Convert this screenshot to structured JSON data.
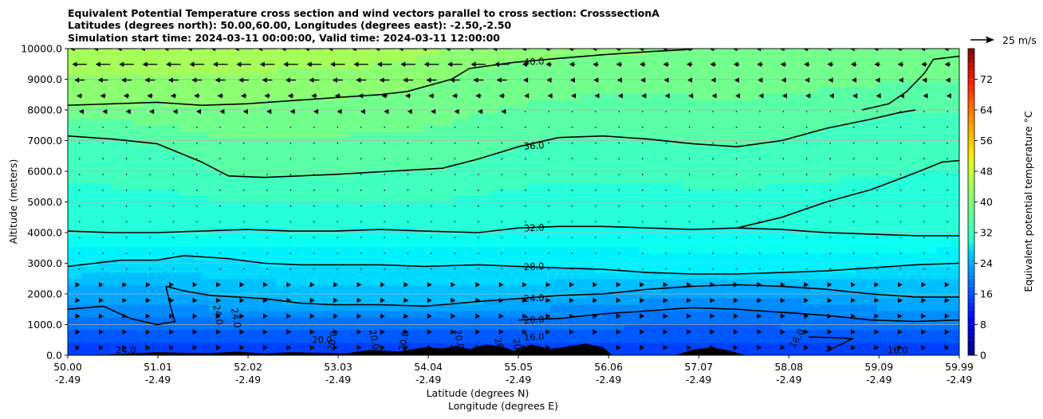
{
  "chart_data": {
    "type": "heatmap",
    "title_lines": [
      "Equivalent Potential Temperature cross section and wind vectors parallel to cross section: CrosssectionA",
      "Latitudes (degrees north): 50.00,60.00, Longitudes (degrees east): -2.50,-2.50",
      "Simulation start time: 2024-03-11 00:00:00, Valid time: 2024-03-11 12:00:00"
    ],
    "xlabel": "Latitude (degrees N)",
    "xlabel2": "Longitude (degrees E)",
    "ylabel": "Altitude (meters)",
    "x_tick_latitudes": [
      "50.00",
      "51.01",
      "52.02",
      "53.03",
      "54.04",
      "55.05",
      "56.06",
      "57.07",
      "58.08",
      "59.09",
      "59.99"
    ],
    "x_tick_longitudes": [
      "-2.49",
      "-2.49",
      "-2.49",
      "-2.49",
      "-2.49",
      "-2.49",
      "-2.49",
      "-2.49",
      "-2.49",
      "-2.49",
      "-2.49"
    ],
    "x_range": [
      50.0,
      59.99
    ],
    "y_ticks": [
      "0.0",
      "1000.0",
      "2000.0",
      "3000.0",
      "4000.0",
      "5000.0",
      "6000.0",
      "7000.0",
      "8000.0",
      "9000.0",
      "10000.0"
    ],
    "y_range": [
      0,
      10000
    ],
    "grid": "horizontal",
    "colorbar": {
      "label": "Equivalent potential temperature $^\\circ$C",
      "label_display": "Equivalent potential temperature °C",
      "ticks": [
        "0",
        "8",
        "16",
        "24",
        "32",
        "40",
        "48",
        "56",
        "64",
        "72"
      ],
      "range": [
        0,
        80
      ],
      "colormap": "jet"
    },
    "quiver_key": {
      "label": "25 m/s"
    },
    "contours": [
      {
        "level": 40,
        "label": "40.0",
        "points": [
          [
            50.0,
            8150
          ],
          [
            50.5,
            8200
          ],
          [
            51.0,
            8250
          ],
          [
            51.5,
            8150
          ],
          [
            52.0,
            8200
          ],
          [
            52.5,
            8300
          ],
          [
            53.0,
            8400
          ],
          [
            53.5,
            8500
          ],
          [
            53.8,
            8600
          ],
          [
            54.3,
            9000
          ],
          [
            54.5,
            9350
          ],
          [
            55.0,
            9550
          ],
          [
            55.5,
            9680
          ],
          [
            56.0,
            9800
          ],
          [
            56.5,
            9900
          ],
          [
            57.0,
            9980
          ]
        ]
      },
      {
        "level": 40,
        "label": "",
        "points": [
          [
            58.9,
            8000
          ],
          [
            59.2,
            8200
          ],
          [
            59.4,
            8600
          ],
          [
            59.6,
            9200
          ],
          [
            59.7,
            9650
          ],
          [
            59.99,
            9750
          ]
        ]
      },
      {
        "level": 36,
        "label": "36.0",
        "points": [
          [
            50.0,
            7150
          ],
          [
            50.5,
            7050
          ],
          [
            51.0,
            6900
          ],
          [
            51.5,
            6300
          ],
          [
            51.8,
            5850
          ],
          [
            52.2,
            5800
          ],
          [
            52.6,
            5850
          ],
          [
            53.0,
            5900
          ],
          [
            53.6,
            6000
          ],
          [
            54.2,
            6100
          ],
          [
            54.6,
            6400
          ],
          [
            55.05,
            6800
          ],
          [
            55.5,
            7100
          ],
          [
            56.0,
            7150
          ],
          [
            56.5,
            7050
          ],
          [
            57.0,
            6900
          ],
          [
            57.5,
            6800
          ],
          [
            58.0,
            7000
          ],
          [
            58.5,
            7400
          ],
          [
            59.0,
            7700
          ],
          [
            59.3,
            7900
          ],
          [
            59.5,
            8000
          ]
        ]
      },
      {
        "level": 32,
        "label": "",
        "points": [
          [
            57.5,
            4150
          ],
          [
            58.0,
            4500
          ],
          [
            58.5,
            5000
          ],
          [
            59.0,
            5400
          ],
          [
            59.5,
            5950
          ],
          [
            59.8,
            6300
          ],
          [
            59.99,
            6350
          ]
        ]
      },
      {
        "level": 32,
        "label": "32.0",
        "points": [
          [
            50.0,
            4050
          ],
          [
            50.5,
            4000
          ],
          [
            51.0,
            4000
          ],
          [
            51.5,
            4050
          ],
          [
            52.0,
            4100
          ],
          [
            52.5,
            4050
          ],
          [
            53.0,
            4050
          ],
          [
            53.5,
            4100
          ],
          [
            54.0,
            4050
          ],
          [
            54.6,
            4000
          ],
          [
            55.05,
            4150
          ],
          [
            55.5,
            4200
          ],
          [
            56.0,
            4200
          ],
          [
            56.5,
            4150
          ],
          [
            57.0,
            4100
          ],
          [
            57.5,
            4150
          ],
          [
            58.0,
            4100
          ],
          [
            58.5,
            4000
          ],
          [
            59.0,
            3950
          ],
          [
            59.5,
            3900
          ],
          [
            59.99,
            3900
          ]
        ]
      },
      {
        "level": 28,
        "label": "28.0",
        "points": [
          [
            50.0,
            2900
          ],
          [
            50.3,
            3000
          ],
          [
            50.6,
            3100
          ],
          [
            51.0,
            3100
          ],
          [
            51.3,
            3250
          ],
          [
            51.8,
            3150
          ],
          [
            52.2,
            3000
          ],
          [
            52.6,
            2950
          ],
          [
            53.0,
            2950
          ],
          [
            53.5,
            2950
          ],
          [
            54.0,
            2900
          ],
          [
            54.6,
            2950
          ],
          [
            55.05,
            2900
          ],
          [
            55.5,
            2850
          ],
          [
            56.0,
            2800
          ],
          [
            56.5,
            2700
          ],
          [
            57.0,
            2650
          ],
          [
            57.5,
            2650
          ],
          [
            58.0,
            2700
          ],
          [
            58.5,
            2750
          ],
          [
            59.0,
            2850
          ],
          [
            59.5,
            2950
          ],
          [
            59.99,
            3000
          ]
        ]
      },
      {
        "level": 24,
        "label": "24.0",
        "points": [
          [
            51.1,
            2250
          ],
          [
            51.3,
            2100
          ],
          [
            51.6,
            1950
          ],
          [
            52.2,
            1850
          ],
          [
            52.6,
            1700
          ],
          [
            53.0,
            1650
          ],
          [
            53.5,
            1650
          ],
          [
            54.0,
            1600
          ],
          [
            54.6,
            1750
          ],
          [
            55.05,
            1850
          ],
          [
            55.5,
            1950
          ],
          [
            56.0,
            2000
          ],
          [
            56.5,
            2150
          ],
          [
            57.0,
            2250
          ],
          [
            57.5,
            2300
          ],
          [
            58.0,
            2250
          ],
          [
            58.5,
            2150
          ],
          [
            59.0,
            2000
          ],
          [
            59.5,
            1900
          ],
          [
            59.99,
            1900
          ]
        ]
      },
      {
        "level": 24,
        "label": "",
        "points": [
          [
            50.0,
            1500
          ],
          [
            50.4,
            1600
          ],
          [
            50.7,
            1200
          ],
          [
            51.0,
            1000
          ],
          [
            51.2,
            1100
          ],
          [
            51.15,
            1600
          ],
          [
            51.1,
            2250
          ]
        ]
      },
      {
        "level": 20,
        "label": "20.0",
        "points": [
          [
            55.05,
            1150
          ],
          [
            55.5,
            1200
          ],
          [
            56.0,
            1350
          ],
          [
            56.5,
            1450
          ],
          [
            57.0,
            1550
          ],
          [
            57.5,
            1500
          ],
          [
            58.0,
            1400
          ],
          [
            58.5,
            1300
          ],
          [
            59.0,
            1150
          ],
          [
            59.5,
            1100
          ],
          [
            59.99,
            1150
          ]
        ]
      },
      {
        "level": 16,
        "label": "16.0",
        "points": [
          [
            58.3,
            600
          ],
          [
            58.8,
            550
          ],
          [
            58.5,
            120
          ]
        ]
      }
    ],
    "inline_labels": [
      {
        "text": "24.0",
        "lat": 50.65,
        "alt": 60
      },
      {
        "text": "24.0",
        "lat": 51.65,
        "alt": 1300,
        "rot": 80
      },
      {
        "text": "24.0",
        "lat": 51.85,
        "alt": 1200,
        "rot": 80
      },
      {
        "text": "20.0",
        "lat": 52.85,
        "alt": 400
      },
      {
        "text": "20.0",
        "lat": 53.0,
        "alt": 450,
        "rot": -80
      },
      {
        "text": "20.0",
        "lat": 53.4,
        "alt": 500,
        "rot": 80
      },
      {
        "text": "20.0",
        "lat": 53.8,
        "alt": 450,
        "rot": -80
      },
      {
        "text": "20.0",
        "lat": 54.35,
        "alt": 500,
        "rot": 80
      },
      {
        "text": "20",
        "lat": 54.8,
        "alt": 350,
        "rot": 70
      },
      {
        "text": "20",
        "lat": 55.0,
        "alt": 350,
        "rot": 80
      },
      {
        "text": "16.0",
        "lat": 58.2,
        "alt": 500,
        "rot": -60
      },
      {
        "text": "16.0",
        "lat": 59.3,
        "alt": 60
      }
    ],
    "terrain": [
      [
        50.0,
        0
      ],
      [
        50.4,
        20
      ],
      [
        50.7,
        60
      ],
      [
        51.0,
        100
      ],
      [
        51.3,
        80
      ],
      [
        51.6,
        70
      ],
      [
        51.9,
        120
      ],
      [
        52.2,
        60
      ],
      [
        52.5,
        100
      ],
      [
        52.8,
        80
      ],
      [
        53.1,
        60
      ],
      [
        53.4,
        180
      ],
      [
        53.7,
        120
      ],
      [
        54.0,
        260
      ],
      [
        54.2,
        220
      ],
      [
        54.35,
        300
      ],
      [
        54.5,
        200
      ],
      [
        54.7,
        350
      ],
      [
        54.9,
        250
      ],
      [
        55.0,
        150
      ],
      [
        55.2,
        350
      ],
      [
        55.4,
        200
      ],
      [
        55.6,
        280
      ],
      [
        55.8,
        380
      ],
      [
        56.0,
        260
      ],
      [
        56.1,
        0
      ],
      [
        56.8,
        0
      ],
      [
        57.0,
        180
      ],
      [
        57.2,
        260
      ],
      [
        57.4,
        160
      ],
      [
        57.6,
        0
      ],
      [
        59.99,
        0
      ]
    ],
    "theta_e_field_description": "filled contours of equivalent potential temperature, 2°C intervals"
  }
}
